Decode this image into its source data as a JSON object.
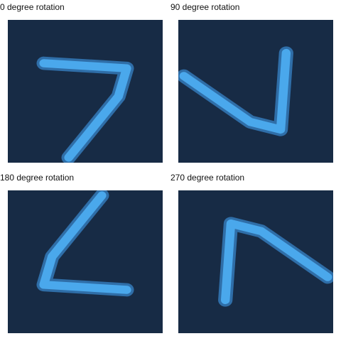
{
  "colors": {
    "canvas_background": "#172b45",
    "stroke_core": "#4aa8ec",
    "stroke_edge": "#2f6ea8",
    "stroke_faint": "#23496f"
  },
  "panels": [
    {
      "label": "0 degree rotation",
      "rotation_deg": 0
    },
    {
      "label": "90 degree rotation",
      "rotation_deg": 90
    },
    {
      "label": "180 degree rotation",
      "rotation_deg": 180
    },
    {
      "label": "270 degree rotation",
      "rotation_deg": 270
    }
  ]
}
